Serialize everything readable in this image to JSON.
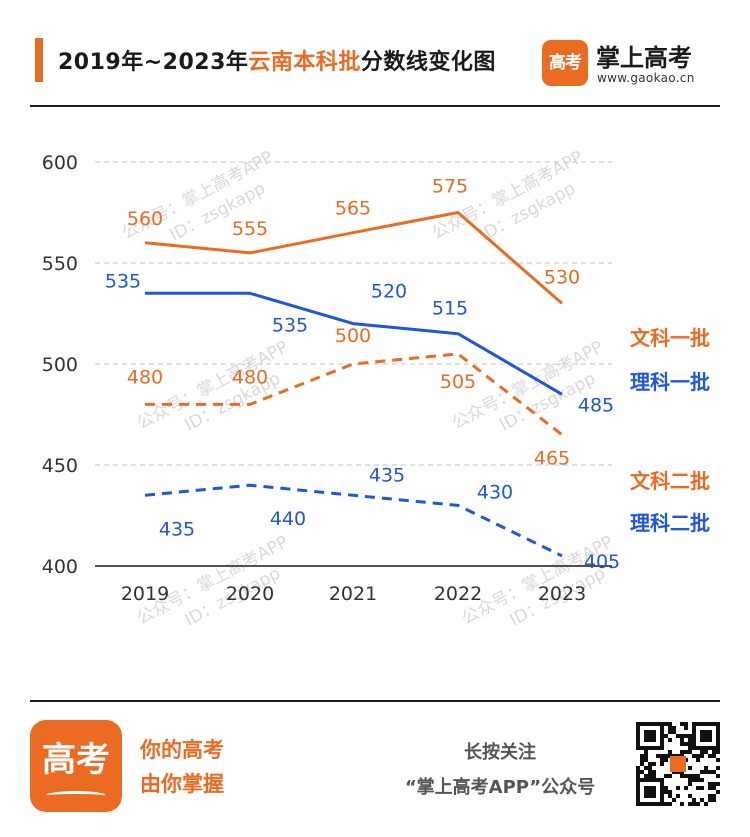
{
  "header": {
    "title_prefix": "2019年~2023年",
    "title_highlight": "云南本科批",
    "title_suffix": "分数线变化图",
    "brand_name": "掌上高考",
    "brand_url": "www.gaokao.cn",
    "logo_text": "高考"
  },
  "colors": {
    "accent": "#ec6b23",
    "blue": "#1f55e0",
    "grid": "#cfcfcf"
  },
  "chart_data": {
    "type": "line",
    "title": "2019年~2023年云南本科批分数线变化图",
    "xlabel": "",
    "ylabel": "",
    "categories": [
      "2019",
      "2020",
      "2021",
      "2022",
      "2023"
    ],
    "ylim": [
      400,
      600
    ],
    "yticks": [
      400,
      450,
      500,
      550,
      600
    ],
    "grid": true,
    "legend_placement": "right",
    "series": [
      {
        "name": "文科一批",
        "values": [
          560,
          555,
          565,
          575,
          530
        ],
        "color": "#ec6b23",
        "dash": false
      },
      {
        "name": "理科一批",
        "values": [
          535,
          535,
          520,
          515,
          485
        ],
        "color": "#1f55e0",
        "dash": false
      },
      {
        "name": "文科二批",
        "values": [
          480,
          480,
          500,
          505,
          465
        ],
        "color": "#ec6b23",
        "dash": true
      },
      {
        "name": "理科二批",
        "values": [
          435,
          440,
          435,
          430,
          405
        ],
        "color": "#1f55e0",
        "dash": true
      }
    ],
    "watermark": [
      "公众号：掌上高考APP",
      "ID：zsgkapp"
    ]
  },
  "footer": {
    "logo_text": "高考",
    "slogan_1": "你的高考",
    "slogan_2": "由你掌握",
    "follow": "长按关注",
    "account": "“掌上高考APP”公众号"
  }
}
